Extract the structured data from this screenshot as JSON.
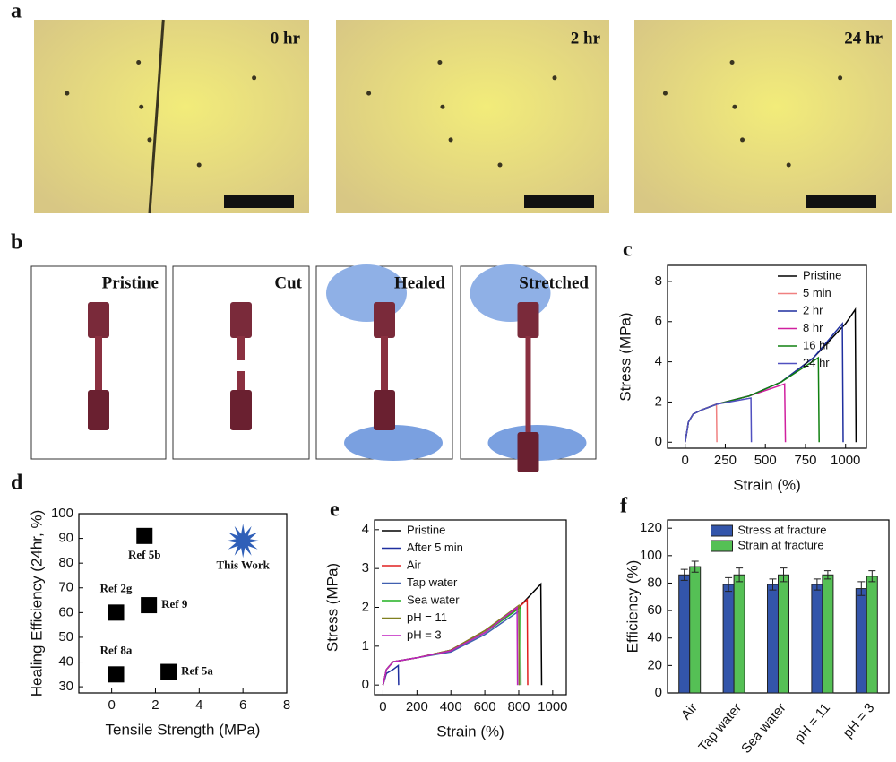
{
  "panel_labels": [
    "a",
    "b",
    "c",
    "d",
    "e",
    "f"
  ],
  "photos_a": [
    "0 hr",
    "2 hr",
    "24 hr"
  ],
  "photos_b": [
    "Pristine",
    "Cut",
    "Healed",
    "Stretched"
  ],
  "chart_data": [
    {
      "type": "line",
      "xlabel": "Strain (%)",
      "ylabel": "Stress (MPa)",
      "xlim": [
        -110,
        1130
      ],
      "xticks": [
        0,
        250,
        500,
        750,
        1000
      ],
      "ylim": [
        -0.3,
        8.8
      ],
      "yticks": [
        0,
        2,
        4,
        6,
        8
      ],
      "legend": "upper right",
      "series": [
        {
          "name": "Pristine",
          "color": "#000000",
          "x": [
            0,
            20,
            50,
            100,
            200,
            400,
            600,
            800,
            1000,
            1060,
            1065
          ],
          "values": [
            0,
            1.0,
            1.4,
            1.6,
            1.9,
            2.3,
            3.0,
            4.2,
            5.9,
            6.6,
            0
          ]
        },
        {
          "name": "5 min",
          "color": "#f08080",
          "x": [
            0,
            20,
            50,
            100,
            195,
            198
          ],
          "values": [
            0,
            1.0,
            1.4,
            1.6,
            1.9,
            0
          ]
        },
        {
          "name": "2 hr",
          "color": "#1f2f9f",
          "x": [
            0,
            20,
            50,
            100,
            200,
            400,
            600,
            800,
            980,
            985
          ],
          "values": [
            0,
            1.0,
            1.4,
            1.6,
            1.9,
            2.3,
            3.0,
            4.2,
            5.9,
            0
          ]
        },
        {
          "name": "8 hr",
          "color": "#d0209f",
          "x": [
            0,
            20,
            50,
            100,
            200,
            400,
            620,
            625
          ],
          "values": [
            0,
            1.0,
            1.4,
            1.6,
            1.9,
            2.3,
            2.9,
            0
          ]
        },
        {
          "name": "16 hr",
          "color": "#108010",
          "x": [
            0,
            20,
            50,
            100,
            200,
            400,
            600,
            830,
            835
          ],
          "values": [
            0,
            1.0,
            1.4,
            1.6,
            1.9,
            2.3,
            3.0,
            4.2,
            0
          ]
        },
        {
          "name": "24 hr",
          "color": "#5050c0",
          "x": [
            0,
            20,
            50,
            100,
            200,
            410,
            413
          ],
          "values": [
            0,
            1.0,
            1.4,
            1.6,
            1.9,
            2.2,
            0
          ]
        }
      ]
    },
    {
      "type": "scatter",
      "xlabel": "Tensile Strength (MPa)",
      "ylabel": "Healing Efficiency (24hr, %)",
      "xlim": [
        -1.5,
        8
      ],
      "xticks": [
        0,
        2,
        4,
        6,
        8
      ],
      "ylim": [
        27.5,
        100
      ],
      "yticks": [
        30,
        40,
        50,
        60,
        70,
        80,
        90,
        100
      ],
      "x": [
        1.5,
        0.2,
        1.7,
        0.2,
        2.6,
        6.0
      ],
      "values": [
        91,
        60,
        63,
        35,
        36,
        89
      ],
      "point_labels": [
        "Ref 5b",
        "Ref 2g",
        "Ref 9",
        "Ref 8a",
        "Ref 5a",
        "This Work"
      ],
      "markers": [
        "square",
        "square",
        "square",
        "square",
        "square",
        "star"
      ],
      "colors": [
        "#000000",
        "#000000",
        "#000000",
        "#000000",
        "#000000",
        "#2f5fb8"
      ]
    },
    {
      "type": "line",
      "xlabel": "Strain (%)",
      "ylabel": "Stress (MPa)",
      "xlim": [
        -50,
        1080
      ],
      "xticks": [
        0,
        200,
        400,
        600,
        800,
        1000
      ],
      "ylim": [
        -0.25,
        4.25
      ],
      "yticks": [
        0,
        1,
        2,
        3,
        4
      ],
      "legend": "upper left",
      "series": [
        {
          "name": "Pristine",
          "color": "#000000",
          "x": [
            0,
            20,
            60,
            200,
            400,
            600,
            800,
            930,
            935
          ],
          "values": [
            0,
            0.4,
            0.6,
            0.7,
            0.9,
            1.4,
            2.0,
            2.6,
            0
          ]
        },
        {
          "name": "After 5 min",
          "color": "#1f2f9f",
          "x": [
            0,
            20,
            60,
            90,
            92
          ],
          "values": [
            0,
            0.3,
            0.4,
            0.5,
            0
          ]
        },
        {
          "name": "Air",
          "color": "#e02020",
          "x": [
            0,
            20,
            60,
            200,
            400,
            600,
            800,
            850,
            853
          ],
          "values": [
            0,
            0.4,
            0.6,
            0.7,
            0.9,
            1.4,
            2.0,
            2.2,
            0
          ]
        },
        {
          "name": "Tap water",
          "color": "#4060b0",
          "x": [
            0,
            20,
            60,
            200,
            400,
            600,
            800,
            803
          ],
          "values": [
            0,
            0.4,
            0.6,
            0.7,
            0.85,
            1.3,
            1.9,
            0
          ]
        },
        {
          "name": "Sea water",
          "color": "#20b020",
          "x": [
            0,
            20,
            60,
            200,
            400,
            600,
            810,
            813
          ],
          "values": [
            0,
            0.4,
            0.6,
            0.7,
            0.88,
            1.35,
            2.0,
            0
          ]
        },
        {
          "name": "pH = 11",
          "color": "#808020",
          "x": [
            0,
            20,
            60,
            200,
            400,
            600,
            800,
            803
          ],
          "values": [
            0,
            0.4,
            0.6,
            0.7,
            0.9,
            1.4,
            2.05,
            0
          ]
        },
        {
          "name": "pH = 3",
          "color": "#c020c0",
          "x": [
            0,
            20,
            60,
            200,
            400,
            600,
            790,
            793
          ],
          "values": [
            0,
            0.4,
            0.6,
            0.7,
            0.88,
            1.35,
            2.0,
            0
          ]
        }
      ]
    },
    {
      "type": "bar",
      "ylabel": "Efficiency (%)",
      "categories": [
        "Air",
        "Tap water",
        "Sea water",
        "pH = 11",
        "pH = 3"
      ],
      "ylim": [
        0,
        126
      ],
      "yticks": [
        0,
        20,
        40,
        60,
        80,
        100,
        120
      ],
      "legend": "upper center",
      "series": [
        {
          "name": "Stress at fracture",
          "color": "#3355aa",
          "values": [
            86,
            79,
            79,
            79,
            76
          ],
          "errors": [
            4,
            5,
            4,
            4,
            5
          ]
        },
        {
          "name": "Strain at fracture",
          "color": "#55c055",
          "values": [
            92,
            86,
            86,
            86,
            85
          ],
          "errors": [
            4,
            5,
            5,
            3,
            4
          ]
        }
      ]
    }
  ]
}
